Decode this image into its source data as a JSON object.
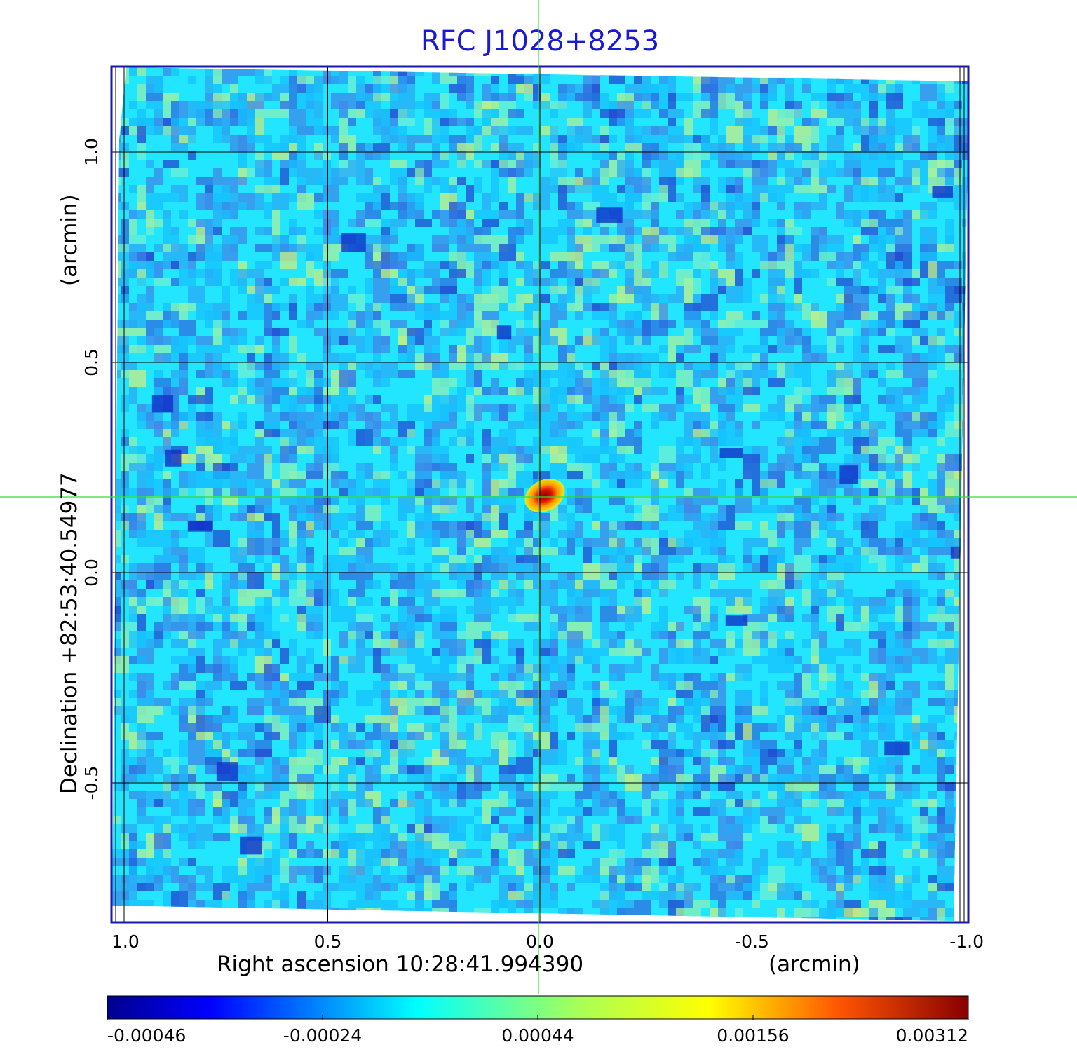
{
  "chart_data": {
    "type": "heatmap",
    "title": "RFC J1028+8253",
    "xlabel": "Right ascension  10:28:41.994390",
    "xunit": "(arcmin)",
    "ylabel": "Declination  +82:53:40.54977",
    "yunit": "(arcmin)",
    "x_ticks": [
      {
        "value": 1.0,
        "label": "1.0"
      },
      {
        "value": 0.5,
        "label": "0.5"
      },
      {
        "value": 0.0,
        "label": "0.0"
      },
      {
        "value": -0.5,
        "label": "-0.5"
      },
      {
        "value": -1.0,
        "label": "-1.0"
      }
    ],
    "y_ticks": [
      {
        "value": 1.0,
        "label": "1.0"
      },
      {
        "value": 0.5,
        "label": "0.5"
      },
      {
        "value": 0.0,
        "label": "0.0"
      },
      {
        "value": -0.5,
        "label": "-0.5"
      }
    ],
    "xlim": [
      1.0,
      -1.0
    ],
    "ylim": [
      -0.83,
      1.2
    ],
    "grid": true,
    "crosshair": {
      "x": 0.0,
      "y": 0.18
    },
    "source_peak": {
      "x": 0.0,
      "y": 0.18,
      "value": 0.00312
    },
    "colorbar": {
      "colormap": "jet",
      "tick_labels": [
        "-0.00046",
        "-0.00024",
        "0.00044",
        "0.00156",
        "0.00312"
      ],
      "tick_values": [
        -0.00046,
        -0.00024,
        0.00044,
        0.00156,
        0.00312
      ],
      "range": [
        -0.00046,
        0.00312
      ]
    },
    "colors": {
      "frame": "#1a1aa8",
      "grid": "#000000",
      "crosshair": "#33dd33",
      "background_noise": "#22e5ff",
      "title": "#1a1ad6"
    }
  }
}
